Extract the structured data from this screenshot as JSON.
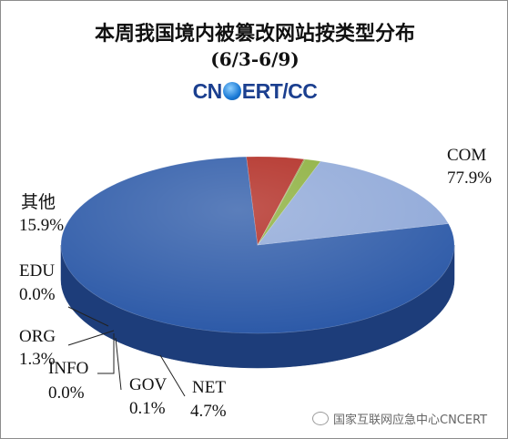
{
  "chart_data": {
    "type": "pie",
    "title": "本周我国境内被篡改网站按类型分布",
    "subtitle": "(6/3-6/9)",
    "logo_text": {
      "left": "CN",
      "right": "ERT/CC"
    },
    "slices": [
      {
        "name": "COM",
        "value": 77.9,
        "label": "77.9%",
        "color": "#2d5aa8",
        "side": "#1d3d7a"
      },
      {
        "name": "NET",
        "value": 4.7,
        "label": "4.7%",
        "color": "#b0281f",
        "side": "#7a1a14"
      },
      {
        "name": "GOV",
        "value": 0.1,
        "label": "0.1%",
        "color": "#7a9a2a",
        "side": "#506619"
      },
      {
        "name": "INFO",
        "value": 0.0,
        "label": "0.0%",
        "color": "#6a4a8a",
        "side": "#4a3264"
      },
      {
        "name": "ORG",
        "value": 1.3,
        "label": "1.3%",
        "color": "#8aae3a",
        "side": "#5c7a22"
      },
      {
        "name": "EDU",
        "value": 0.0,
        "label": "0.0%",
        "color": "#3a8aa0",
        "side": "#26606f"
      },
      {
        "name": "其他",
        "value": 15.9,
        "label": "15.9%",
        "color": "#8fa8d8",
        "side": "#5a74a8"
      }
    ]
  },
  "watermark": "国家互联网应急中心CNCERT"
}
